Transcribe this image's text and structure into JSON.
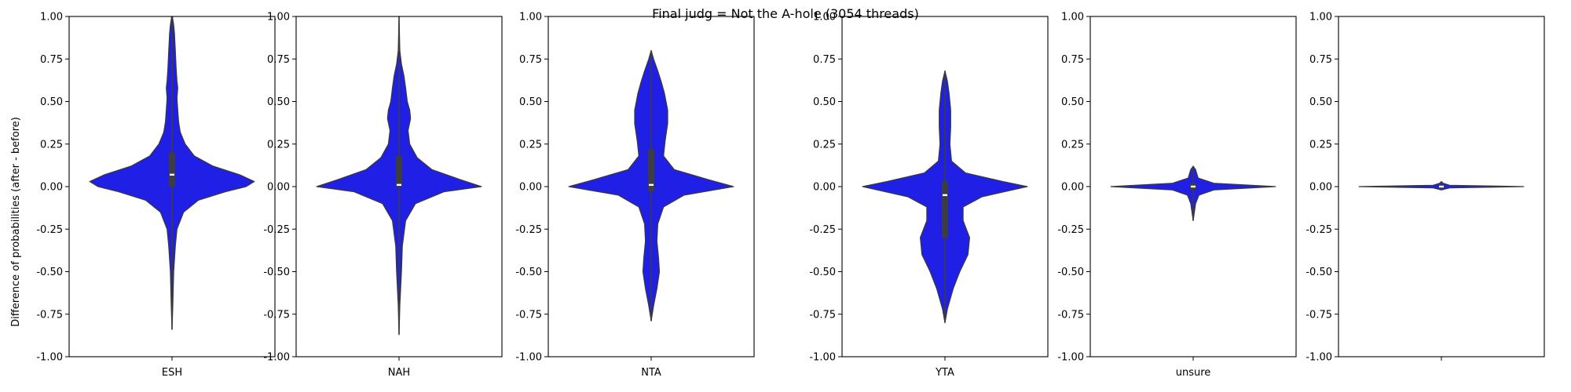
{
  "figure": {
    "suptitle": "Final judg = Not the A-hole (3054 threads)",
    "ylabel": "Difference of probabilities (after - before)",
    "violin_color": "#1f1fe6",
    "edge_color": "#3a3a3a",
    "box_color": "#3d3d3d",
    "median_color": "#ffffff"
  },
  "chart_data": {
    "type": "violin",
    "ylim": [
      -1.0,
      1.0
    ],
    "yticks": [
      "-1.00",
      "-0.75",
      "-0.50",
      "-0.25",
      "0.00",
      "0.25",
      "0.50",
      "0.75",
      "1.00"
    ],
    "yticks_values": [
      -1.0,
      -0.75,
      -0.5,
      -0.25,
      0.0,
      0.25,
      0.5,
      0.75,
      1.0
    ],
    "grid": false,
    "panels": [
      {
        "category": "ESH",
        "whisker": [
          -0.84,
          1.0
        ],
        "box": [
          0.0,
          0.2
        ],
        "median": 0.07,
        "profile": [
          [
            -0.84,
            0.0
          ],
          [
            -0.7,
            0.01
          ],
          [
            -0.5,
            0.02
          ],
          [
            -0.35,
            0.04
          ],
          [
            -0.25,
            0.06
          ],
          [
            -0.15,
            0.14
          ],
          [
            -0.08,
            0.32
          ],
          [
            -0.03,
            0.65
          ],
          [
            0.0,
            0.9
          ],
          [
            0.03,
            1.0
          ],
          [
            0.07,
            0.82
          ],
          [
            0.12,
            0.5
          ],
          [
            0.18,
            0.27
          ],
          [
            0.25,
            0.16
          ],
          [
            0.32,
            0.1
          ],
          [
            0.38,
            0.08
          ],
          [
            0.45,
            0.07
          ],
          [
            0.52,
            0.06
          ],
          [
            0.58,
            0.07
          ],
          [
            0.62,
            0.06
          ],
          [
            0.7,
            0.05
          ],
          [
            0.8,
            0.04
          ],
          [
            0.9,
            0.03
          ],
          [
            0.95,
            0.02
          ],
          [
            1.0,
            0.005
          ]
        ]
      },
      {
        "category": "NAH",
        "whisker": [
          -0.87,
          1.0
        ],
        "box": [
          0.0,
          0.18
        ],
        "median": 0.01,
        "profile": [
          [
            -0.87,
            0.0
          ],
          [
            -0.7,
            0.01
          ],
          [
            -0.5,
            0.03
          ],
          [
            -0.35,
            0.04
          ],
          [
            -0.2,
            0.08
          ],
          [
            -0.1,
            0.2
          ],
          [
            -0.03,
            0.55
          ],
          [
            0.0,
            1.0
          ],
          [
            0.04,
            0.75
          ],
          [
            0.1,
            0.4
          ],
          [
            0.17,
            0.22
          ],
          [
            0.25,
            0.13
          ],
          [
            0.33,
            0.11
          ],
          [
            0.4,
            0.14
          ],
          [
            0.45,
            0.13
          ],
          [
            0.5,
            0.1
          ],
          [
            0.58,
            0.08
          ],
          [
            0.65,
            0.06
          ],
          [
            0.72,
            0.03
          ],
          [
            0.8,
            0.01
          ],
          [
            0.9,
            0.005
          ],
          [
            1.0,
            0.0
          ]
        ]
      },
      {
        "category": "NTA",
        "whisker": [
          -0.79,
          0.8
        ],
        "box": [
          -0.03,
          0.22
        ],
        "median": 0.01,
        "profile": [
          [
            -0.79,
            0.0
          ],
          [
            -0.7,
            0.03
          ],
          [
            -0.6,
            0.07
          ],
          [
            -0.5,
            0.1
          ],
          [
            -0.42,
            0.09
          ],
          [
            -0.32,
            0.07
          ],
          [
            -0.22,
            0.08
          ],
          [
            -0.12,
            0.15
          ],
          [
            -0.05,
            0.4
          ],
          [
            0.0,
            1.0
          ],
          [
            0.04,
            0.7
          ],
          [
            0.1,
            0.28
          ],
          [
            0.18,
            0.15
          ],
          [
            0.27,
            0.17
          ],
          [
            0.37,
            0.2
          ],
          [
            0.45,
            0.2
          ],
          [
            0.55,
            0.16
          ],
          [
            0.62,
            0.12
          ],
          [
            0.68,
            0.08
          ],
          [
            0.75,
            0.03
          ],
          [
            0.8,
            0.0
          ]
        ]
      },
      {
        "category": "YTA",
        "whisker": [
          -0.8,
          0.68
        ],
        "box": [
          -0.3,
          0.03
        ],
        "median": -0.05,
        "profile": [
          [
            -0.8,
            0.0
          ],
          [
            -0.72,
            0.03
          ],
          [
            -0.6,
            0.1
          ],
          [
            -0.5,
            0.18
          ],
          [
            -0.4,
            0.28
          ],
          [
            -0.3,
            0.3
          ],
          [
            -0.2,
            0.22
          ],
          [
            -0.12,
            0.22
          ],
          [
            -0.06,
            0.45
          ],
          [
            0.0,
            1.0
          ],
          [
            0.03,
            0.7
          ],
          [
            0.08,
            0.25
          ],
          [
            0.15,
            0.08
          ],
          [
            0.25,
            0.06
          ],
          [
            0.35,
            0.07
          ],
          [
            0.45,
            0.07
          ],
          [
            0.55,
            0.05
          ],
          [
            0.62,
            0.03
          ],
          [
            0.68,
            0.0
          ]
        ]
      },
      {
        "category": "unsure",
        "whisker": [
          -0.2,
          0.12
        ],
        "box": [
          -0.02,
          0.02
        ],
        "median": 0.0,
        "profile": [
          [
            -0.2,
            0.0
          ],
          [
            -0.1,
            0.03
          ],
          [
            -0.05,
            0.07
          ],
          [
            -0.02,
            0.25
          ],
          [
            0.0,
            1.0
          ],
          [
            0.02,
            0.25
          ],
          [
            0.05,
            0.06
          ],
          [
            0.1,
            0.03
          ],
          [
            0.12,
            0.0
          ]
        ]
      },
      {
        "category": "",
        "whisker": [
          -0.02,
          0.03
        ],
        "box": [
          -0.01,
          0.01
        ],
        "median": 0.0,
        "profile": [
          [
            -0.02,
            0.0
          ],
          [
            -0.008,
            0.1
          ],
          [
            0.0,
            1.0
          ],
          [
            0.008,
            0.1
          ],
          [
            0.02,
            0.02
          ],
          [
            0.03,
            0.0
          ]
        ]
      }
    ]
  }
}
